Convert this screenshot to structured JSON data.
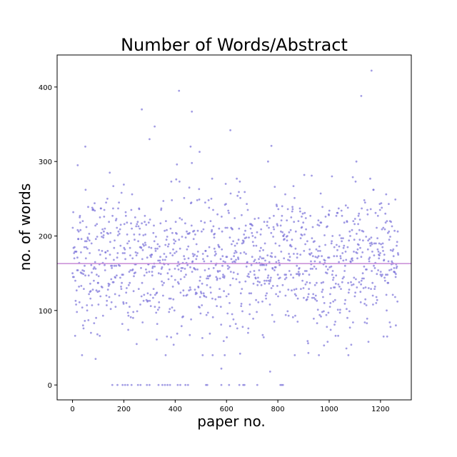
{
  "chart_data": {
    "type": "scatter",
    "title": "Number of Words/Abstract",
    "xlabel": "paper no.",
    "ylabel": "no. of words",
    "xlim": [
      -60,
      1320
    ],
    "ylim": [
      -20,
      443
    ],
    "xticks": [
      "0",
      "200",
      "400",
      "600",
      "800",
      "1000",
      "1200"
    ],
    "yticks": [
      "0",
      "100",
      "200",
      "300",
      "400"
    ],
    "grid": false,
    "mean_line": 163,
    "point_color": "#7b72d9",
    "mean_line_color": "#c88ad6",
    "n_points": 1270,
    "distribution": "words per abstract mostly 50–300, centered near 165; a number of abstracts with 0 words; outliers up to ~420",
    "notable_points": [
      {
        "x": 20,
        "y": 295
      },
      {
        "x": 50,
        "y": 320
      },
      {
        "x": 90,
        "y": 35
      },
      {
        "x": 270,
        "y": 370
      },
      {
        "x": 300,
        "y": 330
      },
      {
        "x": 320,
        "y": 347
      },
      {
        "x": 415,
        "y": 395
      },
      {
        "x": 465,
        "y": 367
      },
      {
        "x": 460,
        "y": 320
      },
      {
        "x": 495,
        "y": 313
      },
      {
        "x": 580,
        "y": 22
      },
      {
        "x": 615,
        "y": 342
      },
      {
        "x": 775,
        "y": 321
      },
      {
        "x": 770,
        "y": 18
      },
      {
        "x": 1125,
        "y": 388
      },
      {
        "x": 1165,
        "y": 422
      },
      {
        "x": 1260,
        "y": 80
      },
      {
        "x": 980,
        "y": 53
      }
    ],
    "zero_points_x": [
      155,
      175,
      195,
      205,
      215,
      230,
      255,
      265,
      290,
      300,
      335,
      350,
      360,
      370,
      380,
      410,
      420,
      440,
      450,
      520,
      525,
      580,
      610,
      650,
      665,
      670,
      720,
      810,
      815,
      820
    ]
  }
}
